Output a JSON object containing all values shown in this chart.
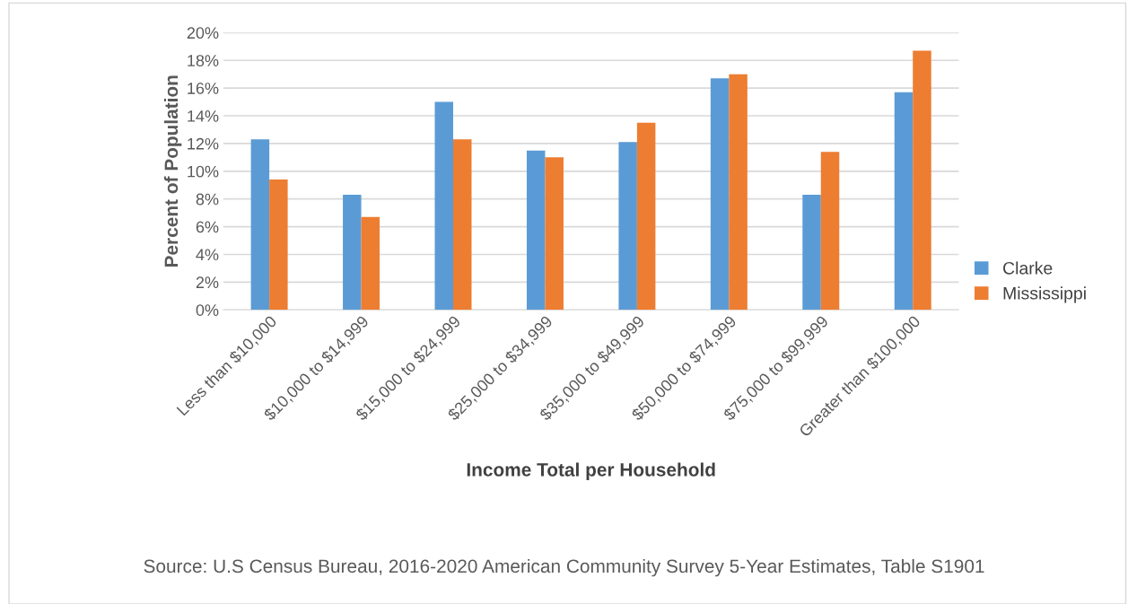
{
  "chart_data": {
    "type": "bar",
    "xlabel": "Income Total per Household",
    "ylabel": "Percent of Population",
    "categories": [
      "Less than $10,000",
      "$10,000 to $14,999",
      "$15,000 to $24,999",
      "$25,000 to $34,999",
      "$35,000 to $49,999",
      "$50,000 to $74,999",
      "$75,000 to $99,999",
      "Greater than $100,000"
    ],
    "series": [
      {
        "name": "Clarke",
        "color": "#5b9bd5",
        "values": [
          12.3,
          8.3,
          15.0,
          11.5,
          12.1,
          16.7,
          8.3,
          15.7
        ]
      },
      {
        "name": "Mississippi",
        "color": "#ed7d31",
        "values": [
          9.4,
          6.7,
          12.3,
          11.0,
          13.5,
          17.0,
          11.4,
          18.7
        ]
      }
    ],
    "ylim": [
      0,
      20
    ],
    "yticks": [
      {
        "value": 0,
        "label": "0%"
      },
      {
        "value": 2,
        "label": "2%"
      },
      {
        "value": 4,
        "label": "4%"
      },
      {
        "value": 6,
        "label": "6%"
      },
      {
        "value": 8,
        "label": "8%"
      },
      {
        "value": 10,
        "label": "10%"
      },
      {
        "value": 12,
        "label": "12%"
      },
      {
        "value": 14,
        "label": "14%"
      },
      {
        "value": 16,
        "label": "16%"
      },
      {
        "value": 18,
        "label": "18%"
      },
      {
        "value": 20,
        "label": "20%"
      }
    ],
    "grid": "y",
    "legend": "right",
    "annotations": [
      "Source: U.S Census Bureau, 2016-2020 American Community Survey 5-Year Estimates, Table S1901"
    ]
  }
}
